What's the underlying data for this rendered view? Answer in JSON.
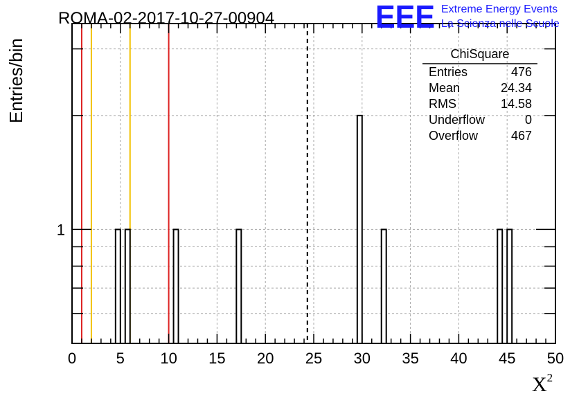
{
  "chart_data": {
    "type": "bar",
    "title": "ROMA-02-2017-10-27-00904",
    "ylabel": "Entries/bin",
    "xlabel": "X",
    "xlabel_sup": "2",
    "xlim": [
      0,
      50
    ],
    "ylim_log": [
      0.5,
      3.5
    ],
    "log_y": true,
    "grid": true,
    "bin_width": 0.5,
    "bins": [
      {
        "x": 4.5,
        "value": 1
      },
      {
        "x": 5.5,
        "value": 1
      },
      {
        "x": 10.5,
        "value": 1
      },
      {
        "x": 17.0,
        "value": 1
      },
      {
        "x": 29.5,
        "value": 2
      },
      {
        "x": 32.0,
        "value": 1
      },
      {
        "x": 44.0,
        "value": 1
      },
      {
        "x": 45.0,
        "value": 1
      }
    ],
    "x_ticks": [
      "0",
      "5",
      "10",
      "15",
      "20",
      "25",
      "30",
      "35",
      "40",
      "45",
      "50"
    ],
    "y_tick_labels": [
      {
        "value": 1,
        "label": "1"
      }
    ],
    "vertical_lines": [
      {
        "x": 1.0,
        "color": "#dd2222",
        "style": "solid"
      },
      {
        "x": 2.0,
        "color": "#f2c200",
        "style": "solid"
      },
      {
        "x": 6.0,
        "color": "#f2c200",
        "style": "solid"
      },
      {
        "x": 10.0,
        "color": "#dd2222",
        "style": "solid"
      },
      {
        "x": 24.34,
        "color": "#000000",
        "style": "dashed"
      }
    ],
    "stats_box": {
      "title": "ChiSquare",
      "rows": [
        {
          "label": "Entries",
          "value": "476"
        },
        {
          "label": "Mean",
          "value": "24.34"
        },
        {
          "label": "RMS",
          "value": "14.58"
        },
        {
          "label": "Underflow",
          "value": "0"
        },
        {
          "label": "Overflow",
          "value": "467"
        }
      ]
    }
  },
  "logo": {
    "mark": "EEE",
    "line1": "Extreme Energy Events",
    "line2": "La Scienza nelle Scuole"
  }
}
